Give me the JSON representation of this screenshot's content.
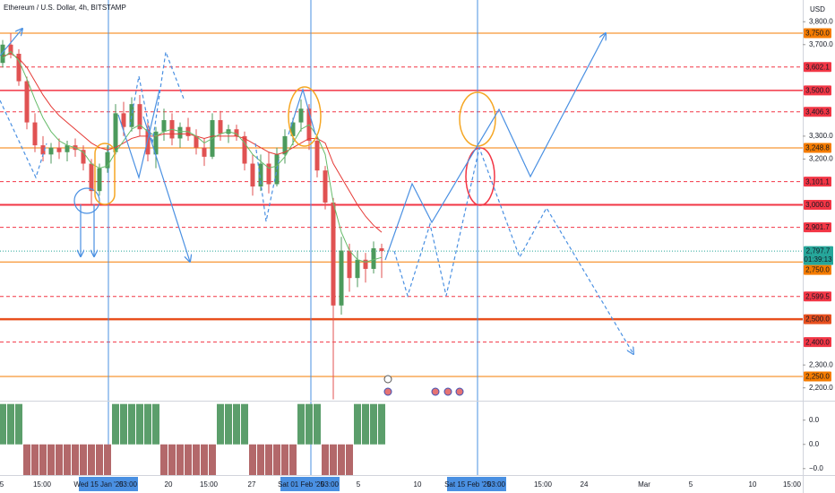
{
  "chart_data": {
    "type": "candlestick",
    "title": "Ethereum / U.S. Dollar, 4h, BITSTAMP",
    "currency": "USD",
    "ylim": [
      2144,
      3895
    ],
    "yticks": [
      {
        "value": 3800,
        "label": "3,800.0"
      },
      {
        "value": 3700,
        "label": "3,700.0"
      },
      {
        "value": 3300,
        "label": "3,300.0"
      },
      {
        "value": 3200,
        "label": "3,200.0"
      },
      {
        "value": 2300,
        "label": "2,300.0"
      },
      {
        "value": 2200,
        "label": "2,200.0"
      }
    ],
    "levels": [
      {
        "value": 3750,
        "label": "3,750.0",
        "color": "#f57c00",
        "style": "solid",
        "width": 1
      },
      {
        "value": 3602.1,
        "label": "3,602.1",
        "color": "#f23645",
        "style": "dashed",
        "width": 1
      },
      {
        "value": 3500,
        "label": "3,500.0",
        "color": "#f23645",
        "style": "solid",
        "width": 1.5
      },
      {
        "value": 3406.3,
        "label": "3,406.3",
        "color": "#f23645",
        "style": "dashed",
        "width": 1
      },
      {
        "value": 3248.8,
        "label": "3,248.8",
        "color": "#f57c00",
        "style": "solid",
        "width": 1
      },
      {
        "value": 3101.1,
        "label": "3,101.1",
        "color": "#f23645",
        "style": "dashed",
        "width": 1
      },
      {
        "value": 3000,
        "label": "3,000.0",
        "color": "#f23645",
        "style": "solid",
        "width": 2
      },
      {
        "value": 2901.7,
        "label": "2,901.7",
        "color": "#f23645",
        "style": "dashed",
        "width": 1
      },
      {
        "value": 2750,
        "label": "2,750.0",
        "color": "#f57c00",
        "style": "solid",
        "width": 1
      },
      {
        "value": 2599.5,
        "label": "2,599.5",
        "color": "#f23645",
        "style": "dashed",
        "width": 1
      },
      {
        "value": 2500,
        "label": "2,500.0",
        "color": "#e8501f",
        "style": "solid",
        "width": 2.5
      },
      {
        "value": 2400,
        "label": "2,400.0",
        "color": "#f23645",
        "style": "dashed",
        "width": 1
      },
      {
        "value": 2250,
        "label": "2,250.0",
        "color": "#f57c00",
        "style": "solid",
        "width": 1
      }
    ],
    "last_price": {
      "value": 2797.7,
      "label": "2,797.7",
      "countdown": "01:39:13",
      "color": "#26a69a"
    },
    "up_color": "#4c9a5c",
    "down_color": "#e05252",
    "candles": [
      [
        3620,
        3720,
        3600,
        3700
      ],
      [
        3700,
        3750,
        3640,
        3660
      ],
      [
        3660,
        3680,
        3520,
        3540
      ],
      [
        3540,
        3560,
        3330,
        3360
      ],
      [
        3360,
        3400,
        3230,
        3260
      ],
      [
        3260,
        3300,
        3190,
        3220
      ],
      [
        3220,
        3270,
        3180,
        3250
      ],
      [
        3250,
        3290,
        3200,
        3230
      ],
      [
        3230,
        3280,
        3190,
        3260
      ],
      [
        3260,
        3290,
        3210,
        3240
      ],
      [
        3240,
        3260,
        3150,
        3180
      ],
      [
        3180,
        3200,
        3000,
        3060
      ],
      [
        3060,
        3180,
        3040,
        3160
      ],
      [
        3160,
        3260,
        3140,
        3230
      ],
      [
        3230,
        3440,
        3220,
        3400
      ],
      [
        3400,
        3450,
        3300,
        3340
      ],
      [
        3340,
        3470,
        3320,
        3440
      ],
      [
        3440,
        3480,
        3300,
        3330
      ],
      [
        3330,
        3360,
        3190,
        3220
      ],
      [
        3220,
        3340,
        3160,
        3320
      ],
      [
        3320,
        3420,
        3280,
        3370
      ],
      [
        3370,
        3400,
        3260,
        3290
      ],
      [
        3290,
        3360,
        3250,
        3340
      ],
      [
        3340,
        3380,
        3280,
        3300
      ],
      [
        3300,
        3330,
        3220,
        3250
      ],
      [
        3250,
        3290,
        3170,
        3210
      ],
      [
        3210,
        3400,
        3200,
        3370
      ],
      [
        3370,
        3410,
        3280,
        3310
      ],
      [
        3310,
        3350,
        3270,
        3330
      ],
      [
        3330,
        3350,
        3280,
        3300
      ],
      [
        3300,
        3320,
        3150,
        3180
      ],
      [
        3180,
        3220,
        3040,
        3080
      ],
      [
        3080,
        3220,
        3060,
        3180
      ],
      [
        3180,
        3230,
        3050,
        3090
      ],
      [
        3090,
        3250,
        3080,
        3220
      ],
      [
        3220,
        3330,
        3180,
        3300
      ],
      [
        3300,
        3380,
        3260,
        3360
      ],
      [
        3360,
        3460,
        3320,
        3420
      ],
      [
        3420,
        3440,
        3240,
        3280
      ],
      [
        3280,
        3300,
        3120,
        3150
      ],
      [
        3150,
        3170,
        2980,
        3010
      ],
      [
        3010,
        3030,
        2150,
        2560
      ],
      [
        2560,
        2860,
        2520,
        2800
      ],
      [
        2800,
        2830,
        2620,
        2680
      ],
      [
        2680,
        2800,
        2640,
        2760
      ],
      [
        2760,
        2790,
        2660,
        2720
      ],
      [
        2720,
        2840,
        2700,
        2810
      ],
      [
        2810,
        2830,
        2680,
        2797.7
      ]
    ],
    "moving_averages": [
      {
        "color": "#e53935",
        "values": [
          3650,
          3660,
          3640,
          3600,
          3540,
          3480,
          3430,
          3390,
          3360,
          3330,
          3300,
          3270,
          3250,
          3240,
          3250,
          3270,
          3290,
          3300,
          3300,
          3300,
          3310,
          3310,
          3310,
          3310,
          3300,
          3290,
          3300,
          3300,
          3300,
          3300,
          3290,
          3270,
          3250,
          3230,
          3220,
          3230,
          3250,
          3270,
          3290,
          3290,
          3270,
          3180,
          3120,
          3060,
          3000,
          2950,
          2910,
          2880
        ]
      },
      {
        "color": "#66bb6a",
        "values": [
          3640,
          3670,
          3630,
          3550,
          3460,
          3380,
          3320,
          3280,
          3260,
          3250,
          3230,
          3180,
          3160,
          3170,
          3230,
          3280,
          3330,
          3350,
          3320,
          3300,
          3320,
          3330,
          3320,
          3320,
          3300,
          3270,
          3290,
          3310,
          3320,
          3310,
          3270,
          3220,
          3190,
          3160,
          3170,
          3210,
          3270,
          3330,
          3350,
          3300,
          3220,
          3010,
          2880,
          2800,
          2760,
          2750,
          2760,
          2770
        ]
      }
    ],
    "oscillator": {
      "ylim": [
        -0.038,
        0.053
      ],
      "yticks": [
        {
          "value": 0.03,
          "label": "0.0"
        },
        {
          "value": 0,
          "label": "0.0"
        },
        {
          "value": -0.03,
          "label": "−0.0"
        }
      ],
      "up_color": "#5b9e6b",
      "down_color": "#b3686a",
      "values": [
        0.05,
        0.05,
        0.05,
        -0.038,
        -0.038,
        -0.038,
        -0.038,
        -0.038,
        -0.038,
        -0.038,
        -0.038,
        -0.038,
        -0.038,
        -0.038,
        0.05,
        0.05,
        0.05,
        0.05,
        0.05,
        0.05,
        -0.038,
        -0.038,
        -0.038,
        -0.038,
        -0.038,
        -0.038,
        -0.038,
        0.05,
        0.05,
        0.05,
        0.05,
        -0.038,
        -0.038,
        -0.038,
        -0.038,
        -0.038,
        -0.038,
        0.05,
        0.05,
        0.05,
        -0.038,
        -0.038,
        -0.038,
        -0.038,
        0.05,
        0.05,
        0.05,
        0.05
      ]
    },
    "x_labels": [
      "5",
      "15:00",
      "Wed 15 Jan '25",
      "03:00",
      "20",
      "15:00",
      "27",
      "Sat 01 Feb '25",
      "03:00",
      "5",
      "10",
      "Sat 15 Feb '25",
      "03:00",
      "15:00",
      "24",
      "Mar",
      "5",
      "10",
      "15:00"
    ]
  }
}
